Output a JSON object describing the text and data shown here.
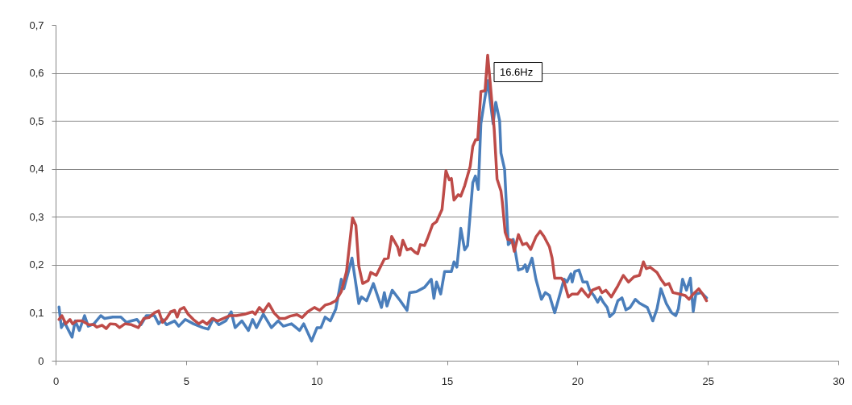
{
  "chart_data": {
    "type": "line",
    "xlim": [
      0,
      30
    ],
    "xticks": [
      0,
      5,
      10,
      15,
      20,
      25,
      30
    ],
    "ylim": [
      0,
      0.7
    ],
    "yticks": [
      0,
      {
        "value": 0.1,
        "label": "0,1"
      },
      {
        "value": 0.2,
        "label": "0,2"
      },
      {
        "value": 0.3,
        "label": "0,3"
      },
      {
        "value": 0.4,
        "label": "0,4"
      },
      {
        "value": 0.5,
        "label": "0,5"
      },
      {
        "value": 0.6,
        "label": "0,6"
      },
      {
        "value": 0.7,
        "label": "0,7"
      }
    ],
    "grid": "y",
    "marker": "none",
    "line_style": "solid",
    "annotations": [
      {
        "text": "16.6Hz",
        "x": 16.56,
        "y": 0.637
      }
    ],
    "series": [
      {
        "color": "#4a7ebb",
        "x": [
          0.13,
          0.22,
          0.34,
          0.63,
          0.75,
          0.91,
          1.11,
          1.25,
          1.47,
          1.73,
          1.88,
          2.19,
          2.5,
          2.71,
          2.91,
          3.12,
          3.27,
          3.48,
          3.79,
          3.95,
          4.1,
          4.25,
          4.56,
          4.72,
          4.97,
          5.28,
          5.64,
          5.85,
          6.05,
          6.26,
          6.52,
          6.73,
          6.88,
          7.14,
          7.39,
          7.55,
          7.7,
          7.96,
          8.27,
          8.53,
          8.73,
          9.04,
          9.35,
          9.51,
          9.81,
          10.02,
          10.17,
          10.33,
          10.53,
          10.74,
          10.95,
          11.05,
          11.36,
          11.62,
          11.72,
          11.92,
          12.18,
          12.49,
          12.6,
          12.7,
          12.9,
          13.21,
          13.47,
          13.57,
          13.83,
          14.14,
          14.4,
          14.5,
          14.6,
          14.76,
          14.91,
          15.17,
          15.27,
          15.38,
          15.53,
          15.68,
          15.79,
          15.99,
          16.09,
          16.2,
          16.3,
          16.56,
          16.77,
          16.87,
          17.02,
          17.07,
          17.21,
          17.3,
          17.35,
          17.54,
          17.74,
          17.9,
          18.0,
          18.07,
          18.26,
          18.41,
          18.62,
          18.77,
          18.93,
          19.13,
          19.29,
          19.49,
          19.6,
          19.75,
          19.8,
          19.9,
          20.06,
          20.21,
          20.37,
          20.47,
          20.63,
          20.78,
          20.88,
          20.99,
          21.14,
          21.24,
          21.4,
          21.55,
          21.71,
          21.86,
          22.02,
          22.22,
          22.38,
          22.68,
          22.89,
          23.05,
          23.2,
          23.41,
          23.61,
          23.77,
          23.87,
          24.03,
          24.18,
          24.33,
          24.44,
          24.54,
          24.75,
          24.95
        ],
        "values": [
          0.112,
          0.069,
          0.08,
          0.049,
          0.083,
          0.063,
          0.094,
          0.072,
          0.077,
          0.094,
          0.088,
          0.091,
          0.091,
          0.08,
          0.083,
          0.086,
          0.075,
          0.094,
          0.094,
          0.077,
          0.086,
          0.075,
          0.083,
          0.072,
          0.086,
          0.077,
          0.069,
          0.066,
          0.088,
          0.075,
          0.083,
          0.102,
          0.069,
          0.083,
          0.063,
          0.086,
          0.069,
          0.097,
          0.069,
          0.083,
          0.072,
          0.077,
          0.063,
          0.077,
          0.041,
          0.069,
          0.069,
          0.091,
          0.083,
          0.108,
          0.17,
          0.15,
          0.214,
          0.119,
          0.133,
          0.125,
          0.161,
          0.111,
          0.142,
          0.114,
          0.147,
          0.125,
          0.105,
          0.142,
          0.144,
          0.153,
          0.17,
          0.13,
          0.164,
          0.139,
          0.186,
          0.186,
          0.206,
          0.195,
          0.276,
          0.231,
          0.24,
          0.371,
          0.385,
          0.357,
          0.494,
          0.584,
          0.494,
          0.539,
          0.5,
          0.433,
          0.399,
          0.3,
          0.242,
          0.253,
          0.189,
          0.192,
          0.2,
          0.186,
          0.214,
          0.17,
          0.128,
          0.142,
          0.136,
          0.1,
          0.131,
          0.17,
          0.164,
          0.181,
          0.164,
          0.186,
          0.189,
          0.164,
          0.164,
          0.147,
          0.136,
          0.122,
          0.133,
          0.122,
          0.111,
          0.092,
          0.1,
          0.125,
          0.131,
          0.106,
          0.111,
          0.128,
          0.12,
          0.111,
          0.083,
          0.108,
          0.15,
          0.119,
          0.1,
          0.094,
          0.108,
          0.17,
          0.147,
          0.172,
          0.103,
          0.139,
          0.142,
          0.131
        ]
      },
      {
        "color": "#be4b48",
        "x": [
          0.13,
          0.24,
          0.39,
          0.55,
          0.65,
          0.8,
          1.01,
          1.27,
          1.47,
          1.58,
          1.78,
          1.94,
          2.09,
          2.3,
          2.45,
          2.66,
          2.91,
          3.17,
          3.38,
          3.58,
          3.79,
          3.95,
          4.1,
          4.25,
          4.41,
          4.56,
          4.66,
          4.77,
          4.92,
          5.08,
          5.28,
          5.49,
          5.64,
          5.8,
          6.0,
          6.21,
          6.42,
          6.67,
          6.93,
          7.24,
          7.55,
          7.65,
          7.81,
          7.96,
          8.17,
          8.37,
          8.58,
          8.78,
          8.99,
          9.25,
          9.45,
          9.66,
          9.92,
          10.12,
          10.33,
          10.53,
          10.74,
          10.95,
          11.15,
          11.38,
          11.51,
          11.62,
          11.77,
          11.98,
          12.08,
          12.29,
          12.6,
          12.75,
          12.88,
          13.11,
          13.19,
          13.31,
          13.47,
          13.62,
          13.78,
          13.88,
          13.98,
          14.14,
          14.24,
          14.45,
          14.6,
          14.81,
          14.96,
          15.09,
          15.17,
          15.27,
          15.43,
          15.53,
          15.68,
          15.89,
          15.99,
          16.1,
          16.18,
          16.3,
          16.46,
          16.56,
          16.66,
          16.81,
          16.92,
          17.07,
          17.12,
          17.23,
          17.33,
          17.49,
          17.58,
          17.74,
          17.9,
          18.05,
          18.21,
          18.41,
          18.57,
          18.72,
          18.93,
          19.03,
          19.13,
          19.39,
          19.49,
          19.65,
          19.8,
          20.01,
          20.16,
          20.32,
          20.42,
          20.57,
          20.83,
          20.94,
          21.09,
          21.3,
          21.55,
          21.76,
          21.96,
          22.17,
          22.38,
          22.53,
          22.64,
          22.79,
          23.05,
          23.2,
          23.36,
          23.51,
          23.66,
          23.92,
          24.13,
          24.28,
          24.44,
          24.65,
          24.8,
          24.95
        ],
        "values": [
          0.086,
          0.094,
          0.077,
          0.086,
          0.077,
          0.083,
          0.083,
          0.075,
          0.075,
          0.07,
          0.074,
          0.067,
          0.077,
          0.076,
          0.069,
          0.077,
          0.075,
          0.069,
          0.088,
          0.09,
          0.1,
          0.104,
          0.08,
          0.088,
          0.102,
          0.105,
          0.091,
          0.107,
          0.111,
          0.097,
          0.086,
          0.077,
          0.083,
          0.076,
          0.088,
          0.083,
          0.088,
          0.094,
          0.094,
          0.097,
          0.102,
          0.097,
          0.111,
          0.102,
          0.119,
          0.1,
          0.088,
          0.088,
          0.093,
          0.096,
          0.09,
          0.102,
          0.111,
          0.105,
          0.116,
          0.119,
          0.125,
          0.144,
          0.186,
          0.298,
          0.282,
          0.198,
          0.161,
          0.167,
          0.184,
          0.178,
          0.212,
          0.214,
          0.259,
          0.237,
          0.22,
          0.251,
          0.231,
          0.234,
          0.226,
          0.223,
          0.242,
          0.24,
          0.253,
          0.284,
          0.29,
          0.315,
          0.396,
          0.377,
          0.38,
          0.335,
          0.346,
          0.343,
          0.365,
          0.405,
          0.447,
          0.461,
          0.461,
          0.561,
          0.563,
          0.637,
          0.578,
          0.483,
          0.379,
          0.354,
          0.332,
          0.268,
          0.253,
          0.251,
          0.228,
          0.263,
          0.242,
          0.245,
          0.232,
          0.258,
          0.27,
          0.259,
          0.237,
          0.214,
          0.172,
          0.172,
          0.164,
          0.133,
          0.139,
          0.139,
          0.15,
          0.139,
          0.133,
          0.147,
          0.153,
          0.142,
          0.147,
          0.133,
          0.156,
          0.178,
          0.164,
          0.175,
          0.178,
          0.206,
          0.192,
          0.195,
          0.184,
          0.17,
          0.158,
          0.161,
          0.142,
          0.139,
          0.136,
          0.128,
          0.139,
          0.15,
          0.139,
          0.125
        ]
      }
    ]
  }
}
